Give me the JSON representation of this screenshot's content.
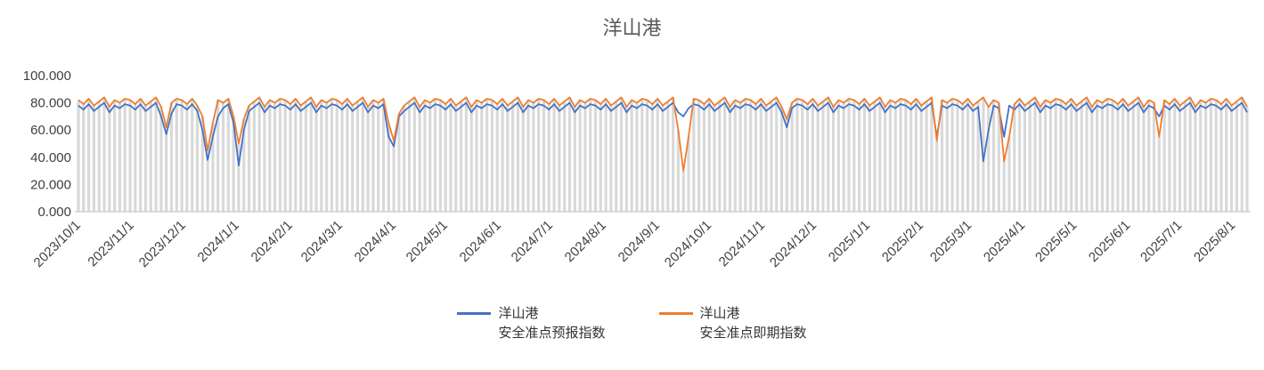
{
  "chart_data": {
    "type": "line",
    "title": "洋山港",
    "start_date": "2023/10/1",
    "sampling_days": 3,
    "x_total_days": 678,
    "x_tick_labels": [
      "2023/10/1",
      "2023/11/1",
      "2023/12/1",
      "2024/1/1",
      "2024/2/1",
      "2024/3/1",
      "2024/4/1",
      "2024/5/1",
      "2024/6/1",
      "2024/7/1",
      "2024/8/1",
      "2024/9/1",
      "2024/10/1",
      "2024/11/1",
      "2024/12/1",
      "2025/1/1",
      "2025/2/1",
      "2025/3/1",
      "2025/4/1",
      "2025/5/1",
      "2025/6/1",
      "2025/7/1",
      "2025/8/1"
    ],
    "x_tick_days": [
      0,
      31,
      61,
      92,
      123,
      152,
      183,
      213,
      244,
      274,
      305,
      336,
      366,
      397,
      427,
      458,
      489,
      517,
      548,
      578,
      609,
      639,
      670
    ],
    "y_ticks": [
      "0.000",
      "20.000",
      "40.000",
      "60.000",
      "80.000",
      "100.000"
    ],
    "y_tick_values": [
      0,
      20,
      40,
      60,
      80,
      100
    ],
    "ylim": [
      0,
      100
    ],
    "grid": false,
    "legend_position": "bottom",
    "background_bars": {
      "color": "#D9D9D9",
      "follows_series": "洋山港\n安全准点即期指数"
    },
    "colors": {
      "axis_text": "#404040",
      "title_text": "#595959",
      "axis_line": "#BFBFBF"
    },
    "series": [
      {
        "name": "洋山港\n安全准点预报指数",
        "color": "#4472C4",
        "values": [
          78,
          75,
          79,
          74,
          77,
          80,
          73,
          78,
          76,
          79,
          78,
          75,
          79,
          74,
          77,
          80,
          70,
          57,
          72,
          79,
          78,
          75,
          79,
          74,
          60,
          38,
          55,
          70,
          76,
          79,
          65,
          34,
          60,
          74,
          77,
          80,
          73,
          78,
          76,
          79,
          78,
          75,
          79,
          74,
          77,
          80,
          73,
          78,
          76,
          79,
          78,
          75,
          79,
          74,
          77,
          80,
          73,
          78,
          76,
          79,
          55,
          48,
          70,
          74,
          77,
          80,
          73,
          78,
          76,
          79,
          78,
          75,
          79,
          74,
          77,
          80,
          73,
          78,
          76,
          79,
          78,
          75,
          79,
          74,
          77,
          80,
          73,
          78,
          76,
          79,
          78,
          75,
          79,
          74,
          77,
          80,
          73,
          78,
          76,
          79,
          78,
          75,
          79,
          74,
          77,
          80,
          73,
          78,
          76,
          79,
          78,
          75,
          79,
          74,
          77,
          80,
          73,
          70,
          76,
          79,
          78,
          75,
          79,
          74,
          77,
          80,
          73,
          78,
          76,
          79,
          78,
          75,
          79,
          74,
          77,
          80,
          73,
          62,
          76,
          79,
          78,
          75,
          79,
          74,
          77,
          80,
          73,
          78,
          76,
          79,
          78,
          75,
          79,
          74,
          77,
          80,
          73,
          78,
          76,
          79,
          78,
          75,
          79,
          74,
          77,
          80,
          55,
          78,
          76,
          79,
          78,
          75,
          79,
          74,
          77,
          37,
          60,
          78,
          76,
          55,
          78,
          75,
          79,
          74,
          77,
          80,
          73,
          78,
          76,
          79,
          78,
          75,
          79,
          74,
          77,
          80,
          73,
          78,
          76,
          79,
          78,
          75,
          79,
          74,
          77,
          80,
          73,
          78,
          76,
          70,
          78,
          75,
          79,
          74,
          77,
          80,
          73,
          78,
          76,
          79,
          78,
          75,
          79,
          74,
          77,
          80,
          73
        ]
      },
      {
        "name": "洋山港\n安全准点即期指数",
        "color": "#ED7D31",
        "values": [
          82,
          79,
          83,
          78,
          81,
          84,
          77,
          82,
          80,
          83,
          82,
          79,
          83,
          78,
          81,
          84,
          77,
          62,
          80,
          83,
          82,
          79,
          83,
          78,
          70,
          45,
          65,
          82,
          80,
          83,
          70,
          50,
          68,
          78,
          81,
          84,
          77,
          82,
          80,
          83,
          82,
          79,
          83,
          78,
          81,
          84,
          77,
          82,
          80,
          83,
          82,
          79,
          83,
          78,
          81,
          84,
          77,
          82,
          80,
          83,
          65,
          52,
          72,
          78,
          81,
          84,
          77,
          82,
          80,
          83,
          82,
          79,
          83,
          78,
          81,
          84,
          77,
          82,
          80,
          83,
          82,
          79,
          83,
          78,
          81,
          84,
          77,
          82,
          80,
          83,
          82,
          79,
          83,
          78,
          81,
          84,
          77,
          82,
          80,
          83,
          82,
          79,
          83,
          78,
          81,
          84,
          77,
          82,
          80,
          83,
          82,
          79,
          83,
          78,
          81,
          84,
          60,
          30,
          55,
          83,
          82,
          79,
          83,
          78,
          81,
          84,
          77,
          82,
          80,
          83,
          82,
          79,
          83,
          78,
          81,
          84,
          77,
          68,
          80,
          83,
          82,
          79,
          83,
          78,
          81,
          84,
          77,
          82,
          80,
          83,
          82,
          79,
          83,
          78,
          81,
          84,
          77,
          82,
          80,
          83,
          82,
          79,
          83,
          78,
          81,
          84,
          52,
          82,
          80,
          83,
          82,
          79,
          83,
          78,
          81,
          84,
          77,
          82,
          80,
          37,
          55,
          79,
          83,
          78,
          81,
          84,
          77,
          82,
          80,
          83,
          82,
          79,
          83,
          78,
          81,
          84,
          77,
          82,
          80,
          83,
          82,
          79,
          83,
          78,
          81,
          84,
          77,
          82,
          80,
          55,
          82,
          79,
          83,
          78,
          81,
          84,
          77,
          82,
          80,
          83,
          82,
          79,
          83,
          78,
          81,
          84,
          77
        ]
      }
    ]
  }
}
